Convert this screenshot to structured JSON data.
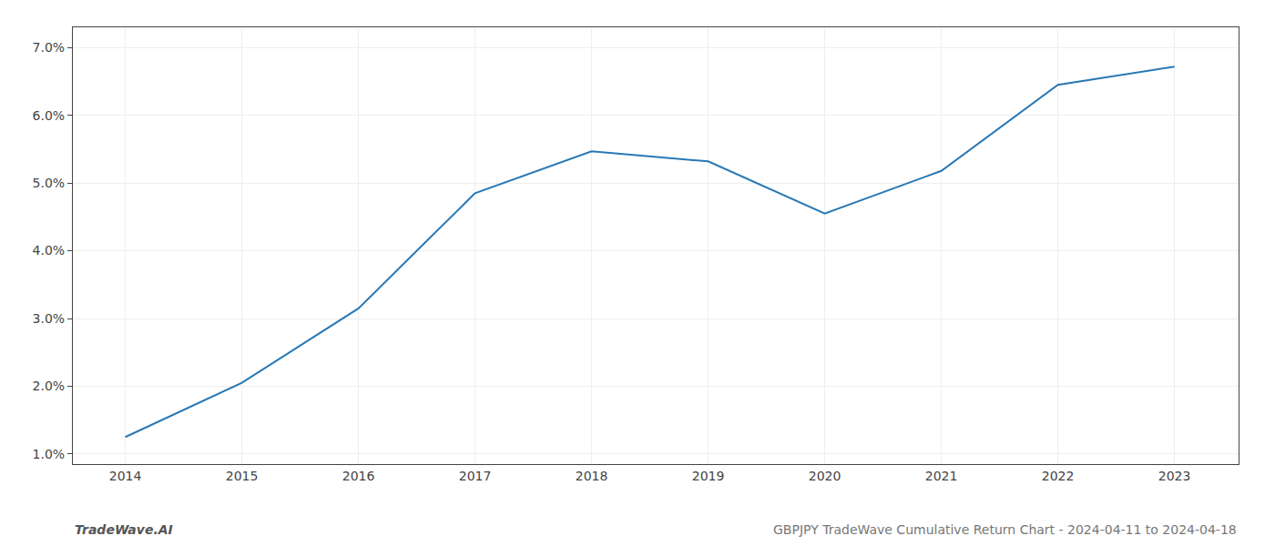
{
  "chart_data": {
    "type": "line",
    "title": "GBPJPY TradeWave Cumulative Return Chart - 2024-04-11 to 2024-04-18",
    "annotations": [
      {
        "text": "TradeWave.AI"
      }
    ],
    "x": [
      2014,
      2015,
      2016,
      2017,
      2018,
      2019,
      2020,
      2021,
      2022,
      2023
    ],
    "values": [
      1.25,
      2.05,
      3.15,
      4.85,
      5.47,
      5.32,
      4.55,
      5.18,
      6.45,
      6.72
    ],
    "color": "#2878b5",
    "xlim": [
      2013.55,
      2023.55
    ],
    "xticks": [
      2014,
      2015,
      2016,
      2017,
      2018,
      2019,
      2020,
      2021,
      2022,
      2023
    ],
    "ylim": [
      0.85,
      7.3
    ],
    "yticks": [
      {
        "value": 1.0,
        "label": "1.0%"
      },
      {
        "value": 2.0,
        "label": "2.0%"
      },
      {
        "value": 3.0,
        "label": "3.0%"
      },
      {
        "value": 4.0,
        "label": "4.0%"
      },
      {
        "value": 5.0,
        "label": "5.0%"
      },
      {
        "value": 6.0,
        "label": "6.0%"
      },
      {
        "value": 7.0,
        "label": "7.0%"
      }
    ],
    "grid": true
  }
}
